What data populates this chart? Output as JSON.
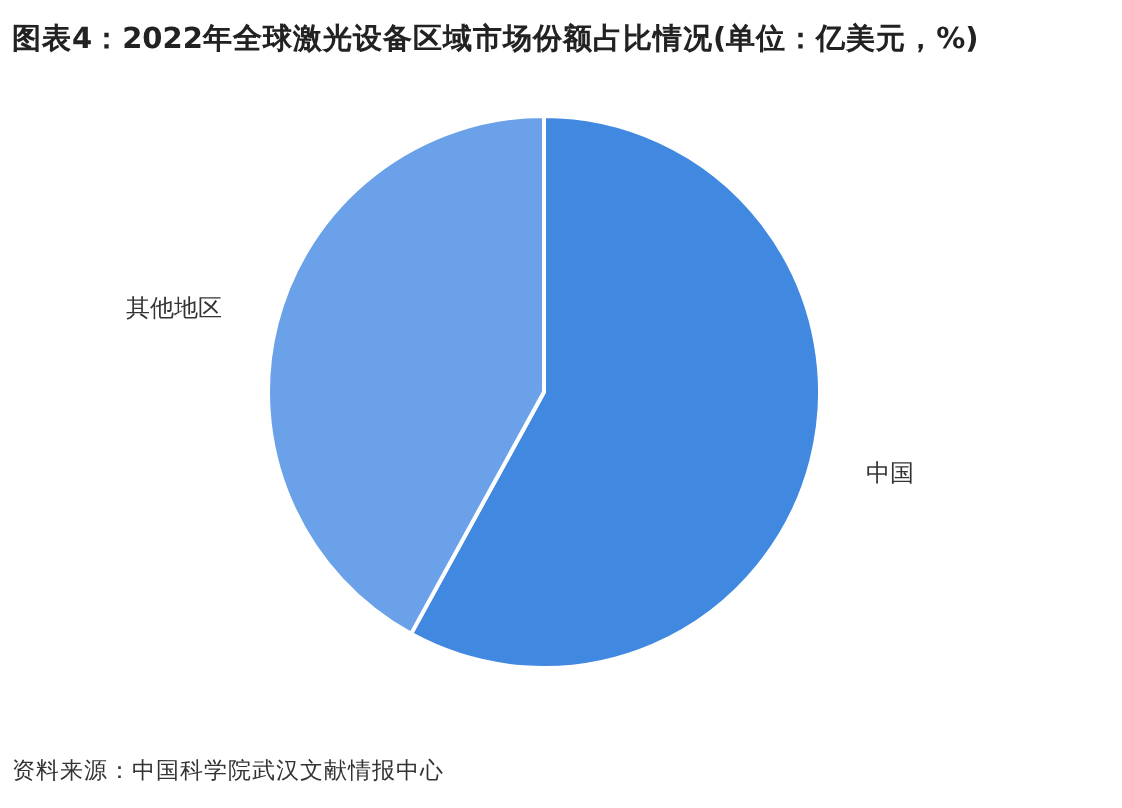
{
  "chart_data": {
    "type": "pie",
    "title": "图表4：2022年全球激光设备区域市场份额占比情况(单位：亿美元，%)",
    "categories": [
      "中国",
      "其他地区"
    ],
    "values": [
      58,
      42
    ],
    "colors": [
      "#4188e0",
      "#6aa1e9"
    ],
    "annotations": [
      "资料来源：中国科学院武汉文献情报中心"
    ]
  }
}
